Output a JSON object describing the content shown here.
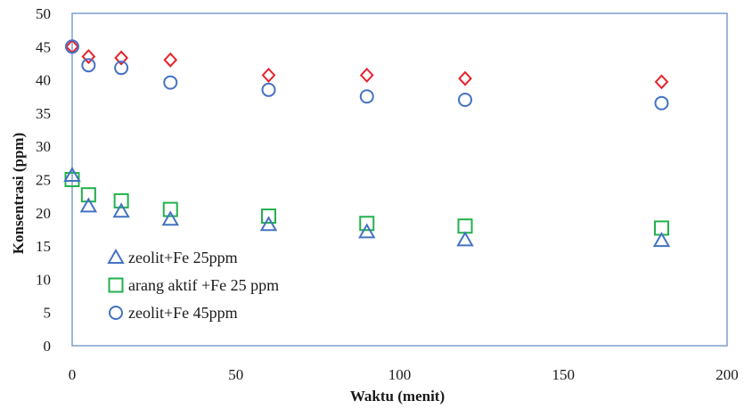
{
  "chart_data": {
    "type": "scatter",
    "title": "",
    "xlabel": "Waktu (menit)",
    "ylabel": "Konsentrasi (ppm)",
    "xlim": [
      0,
      200
    ],
    "ylim": [
      0,
      50
    ],
    "x_ticks": [
      "0",
      "50",
      "100",
      "150",
      "200"
    ],
    "y_ticks": [
      "0",
      "5",
      "10",
      "15",
      "20",
      "25",
      "30",
      "35",
      "40",
      "45",
      "50"
    ],
    "grid": false,
    "legend_position": "bottom-left",
    "series": [
      {
        "name": "zeolit+Fe 25ppm",
        "marker": "triangle",
        "color": "#4472c4",
        "x": [
          0,
          5,
          15,
          30,
          60,
          90,
          120,
          180
        ],
        "y": [
          25.6,
          21.0,
          20.2,
          19.0,
          18.2,
          17.1,
          15.9,
          15.8
        ]
      },
      {
        "name": "arang aktif +Fe 25 ppm",
        "marker": "square",
        "color": "#22b14c",
        "x": [
          0,
          5,
          15,
          30,
          60,
          90,
          120,
          180
        ],
        "y": [
          25.0,
          22.7,
          21.8,
          20.5,
          19.5,
          18.4,
          18.0,
          17.7
        ]
      },
      {
        "name": "zeolit+Fe 45ppm",
        "marker": "circle",
        "color": "#4472c4",
        "x": [
          0,
          5,
          15,
          30,
          60,
          90,
          120,
          180
        ],
        "y": [
          45.0,
          42.2,
          41.8,
          39.6,
          38.5,
          37.5,
          37.0,
          36.5
        ]
      },
      {
        "marker": "diamond",
        "color": "#e8222b",
        "x": [
          0,
          5,
          15,
          30,
          60,
          90,
          120,
          180
        ],
        "y": [
          45.0,
          43.5,
          43.3,
          43.0,
          40.7,
          40.7,
          40.2,
          39.7
        ]
      }
    ]
  }
}
